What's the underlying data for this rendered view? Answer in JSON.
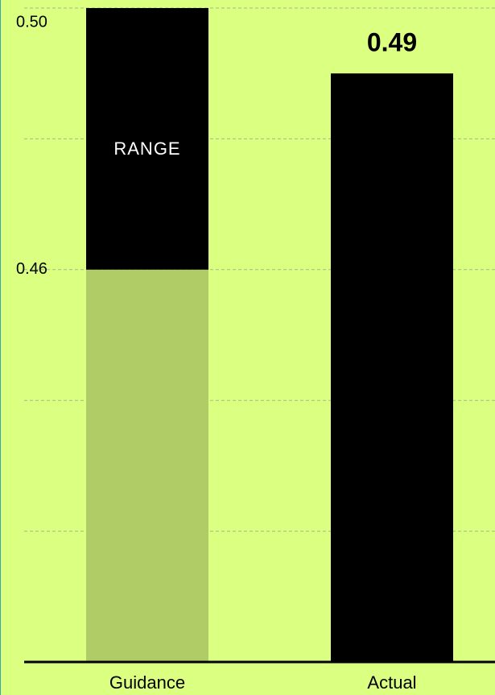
{
  "chart_data": {
    "type": "bar",
    "categories": [
      "Guidance",
      "Actual"
    ],
    "guidance": {
      "low": 0.46,
      "high": 0.5,
      "label": "RANGE",
      "color": "#000000",
      "below_color": "#afcc66"
    },
    "values": [
      null,
      0.49
    ],
    "value_labels": [
      null,
      "0.49"
    ],
    "color": "#000000",
    "ylim": [
      0.4,
      0.5
    ],
    "yticks": [
      {
        "value": 0.5,
        "label": "0.50"
      },
      {
        "value": 0.46,
        "label": "0.46"
      }
    ],
    "grid_lines": [
      0.42,
      0.44,
      0.46,
      0.48,
      0.5
    ],
    "grid": true,
    "background": "#dbff80"
  }
}
